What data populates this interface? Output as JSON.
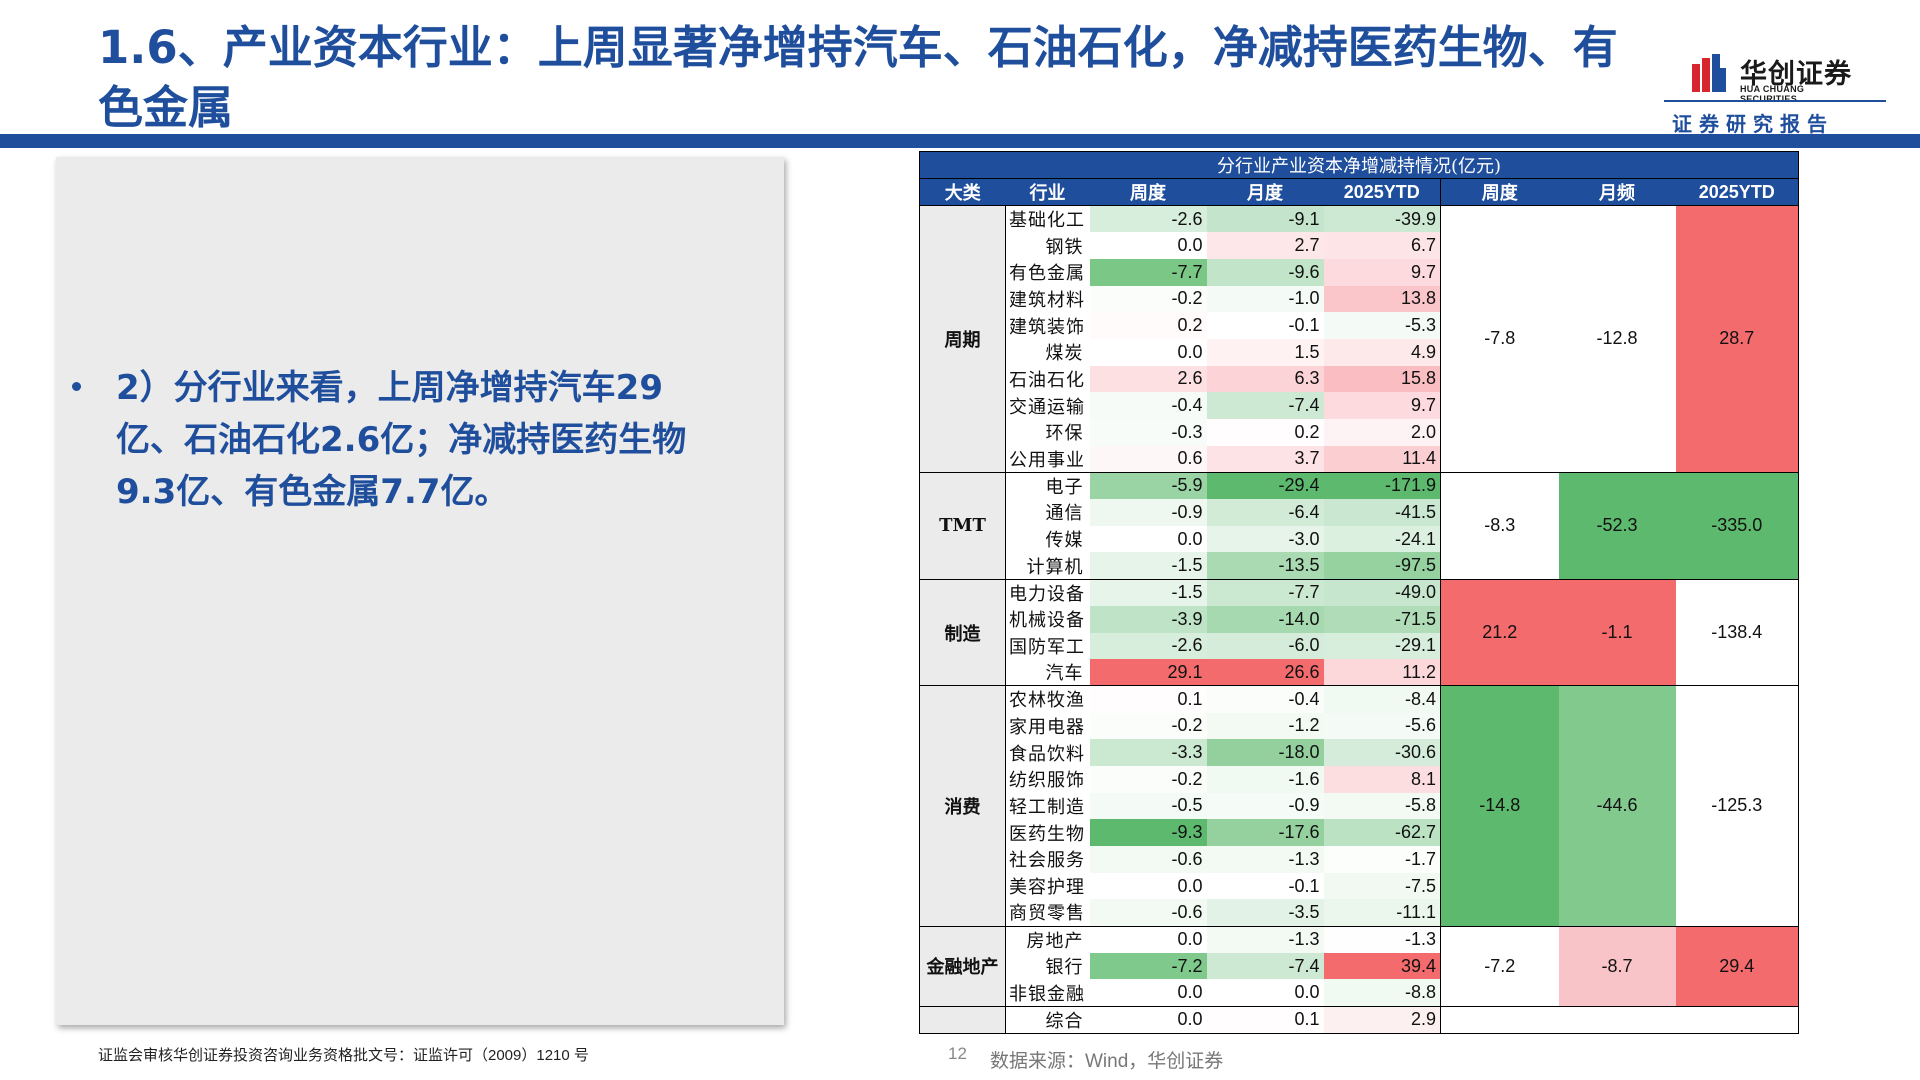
{
  "slide": {
    "title": "1.6、产业资本行业：上周显著净增持汽车、石油石化，净减持医药生物、有色金属",
    "logo_cn": "华创证券",
    "logo_en": "HUA CHUANG SECURITIES",
    "report_label": "证券研究报告",
    "bullet": "2）分行业来看，上周净增持汽车29亿、石油石化2.6亿；净减持医药生物9.3亿、有色金属7.7亿。",
    "footer_license": "证监会审核华创证券投资咨询业务资格批文号：证监许可（2009）1210 号",
    "page_number": "12",
    "source": "数据来源：Wind，华创证券",
    "colors": {
      "brand_blue": "#1f4e9c",
      "red_strong": "#f46b6e",
      "red_light": "#fbd0d3",
      "green_strong": "#5cb96e",
      "green_light": "#cde9d3"
    }
  },
  "table": {
    "caption": "分行业产业资本净增减持情况(亿元)",
    "headers": [
      "大类",
      "行业",
      "周度",
      "月度",
      "2025YTD",
      "周度",
      "月频",
      "2025YTD"
    ],
    "groups": [
      {
        "name": "周期",
        "agg": [
          "-7.8",
          "-12.8",
          "28.7"
        ],
        "agg_colors": [
          "#ffffff",
          "#ffffff",
          "#f46b6e"
        ],
        "rows": [
          {
            "name": "基础化工",
            "v": [
              "-2.6",
              "-9.1",
              "-39.9"
            ],
            "c": [
              "#d7eedc",
              "#c4e5cb",
              "#cde9d3"
            ]
          },
          {
            "name": "钢铁",
            "v": [
              "0.0",
              "2.7",
              "6.7"
            ],
            "c": [
              "#ffffff",
              "#fde7e9",
              "#fde4e6"
            ]
          },
          {
            "name": "有色金属",
            "v": [
              "-7.7",
              "-9.6",
              "9.7"
            ],
            "c": [
              "#7ac786",
              "#c2e4c9",
              "#fcdadd"
            ]
          },
          {
            "name": "建筑材料",
            "v": [
              "-0.2",
              "-1.0",
              "13.8"
            ],
            "c": [
              "#fbfdfb",
              "#f4faf5",
              "#fbc6ca"
            ]
          },
          {
            "name": "建筑装饰",
            "v": [
              "0.2",
              "-0.1",
              "-5.3"
            ],
            "c": [
              "#fffbfb",
              "#fefffe",
              "#f4faf5"
            ]
          },
          {
            "name": "煤炭",
            "v": [
              "0.0",
              "1.5",
              "4.9"
            ],
            "c": [
              "#ffffff",
              "#fef2f3",
              "#fde8ea"
            ]
          },
          {
            "name": "石油石化",
            "v": [
              "2.6",
              "6.3",
              "15.8"
            ],
            "c": [
              "#fce0e2",
              "#fcd4d7",
              "#fabdc1"
            ]
          },
          {
            "name": "交通运输",
            "v": [
              "-0.4",
              "-7.4",
              "9.7"
            ],
            "c": [
              "#f6fbf7",
              "#cde9d3",
              "#fcdadd"
            ]
          },
          {
            "name": "环保",
            "v": [
              "-0.3",
              "0.2",
              "2.0"
            ],
            "c": [
              "#f8fcf9",
              "#fffdfd",
              "#fef3f4"
            ]
          },
          {
            "name": "公用事业",
            "v": [
              "0.6",
              "3.7",
              "11.4"
            ],
            "c": [
              "#fef7f8",
              "#fde3e5",
              "#fbcfd2"
            ]
          }
        ]
      },
      {
        "name": "TMT",
        "agg": [
          "-8.3",
          "-52.3",
          "-335.0"
        ],
        "agg_colors": [
          "#ffffff",
          "#5cb96e",
          "#5cb96e"
        ],
        "rows": [
          {
            "name": "电子",
            "v": [
              "-5.9",
              "-29.4",
              "-171.9"
            ],
            "c": [
              "#9ad4a4",
              "#5cb96e",
              "#5cb96e"
            ]
          },
          {
            "name": "通信",
            "v": [
              "-0.9",
              "-6.4",
              "-41.5"
            ],
            "c": [
              "#eef7f0",
              "#d2ebd7",
              "#cae7d1"
            ]
          },
          {
            "name": "传媒",
            "v": [
              "0.0",
              "-3.0",
              "-24.1"
            ],
            "c": [
              "#ffffff",
              "#e6f4e9",
              "#dcf0e0"
            ]
          },
          {
            "name": "计算机",
            "v": [
              "-1.5",
              "-13.5",
              "-97.5"
            ],
            "c": [
              "#e6f4e9",
              "#a9dab1",
              "#96d1a0"
            ]
          }
        ]
      },
      {
        "name": "制造",
        "agg": [
          "21.2",
          "-1.1",
          "-138.4"
        ],
        "agg_colors": [
          "#f46b6e",
          "#f46b6e",
          "#ffffff"
        ],
        "rows": [
          {
            "name": "电力设备",
            "v": [
              "-1.5",
              "-7.7",
              "-49.0"
            ],
            "c": [
              "#e6f4e9",
              "#cbe8d1",
              "#c6e6cd"
            ]
          },
          {
            "name": "机械设备",
            "v": [
              "-3.9",
              "-14.0",
              "-71.5"
            ],
            "c": [
              "#bfe3c6",
              "#a6d9af",
              "#b0ddb8"
            ]
          },
          {
            "name": "国防军工",
            "v": [
              "-2.6",
              "-6.0",
              "-29.1"
            ],
            "c": [
              "#d7eedc",
              "#d4ecd9",
              "#d6eedb"
            ]
          },
          {
            "name": "汽车",
            "v": [
              "29.1",
              "26.6",
              "11.2"
            ],
            "c": [
              "#f46b6e",
              "#f46b6e",
              "#fcd8db"
            ]
          }
        ]
      },
      {
        "name": "消费",
        "agg": [
          "-14.8",
          "-44.6",
          "-125.3"
        ],
        "agg_colors": [
          "#5cb96e",
          "#82c98e",
          "#ffffff"
        ],
        "rows": [
          {
            "name": "农林牧渔",
            "v": [
              "0.1",
              "-0.4",
              "-8.4"
            ],
            "c": [
              "#fffdfd",
              "#fbfdfb",
              "#f1f9f3"
            ]
          },
          {
            "name": "家用电器",
            "v": [
              "-0.2",
              "-1.2",
              "-5.6"
            ],
            "c": [
              "#fbfdfb",
              "#f3faf4",
              "#f4faf5"
            ]
          },
          {
            "name": "食品饮料",
            "v": [
              "-3.3",
              "-18.0",
              "-30.6"
            ],
            "c": [
              "#cbe8d1",
              "#93d09d",
              "#d4ecd9"
            ]
          },
          {
            "name": "纺织服饰",
            "v": [
              "-0.2",
              "-1.6",
              "8.1"
            ],
            "c": [
              "#fbfdfb",
              "#f1f9f3",
              "#fcdee0"
            ]
          },
          {
            "name": "轻工制造",
            "v": [
              "-0.5",
              "-0.9",
              "-5.8"
            ],
            "c": [
              "#f4faf5",
              "#f5fbf6",
              "#f3faf4"
            ]
          },
          {
            "name": "医药生物",
            "v": [
              "-9.3",
              "-17.6",
              "-62.7"
            ],
            "c": [
              "#5cb96e",
              "#95d19f",
              "#bbe2c3"
            ]
          },
          {
            "name": "社会服务",
            "v": [
              "-0.6",
              "-1.3",
              "-1.7"
            ],
            "c": [
              "#f3faf4",
              "#f3faf4",
              "#fcfefc"
            ]
          },
          {
            "name": "美容护理",
            "v": [
              "0.0",
              "-0.1",
              "-7.5"
            ],
            "c": [
              "#ffffff",
              "#fefffe",
              "#f2f9f3"
            ]
          },
          {
            "name": "商贸零售",
            "v": [
              "-0.6",
              "-3.5",
              "-11.1"
            ],
            "c": [
              "#f3faf4",
              "#e3f2e6",
              "#ebf6ed"
            ]
          }
        ]
      },
      {
        "name": "金融地产",
        "agg": [
          "-7.2",
          "-8.7",
          "29.4"
        ],
        "agg_colors": [
          "#ffffff",
          "#f9c4c8",
          "#f46b6e"
        ],
        "rows": [
          {
            "name": "房地产",
            "v": [
              "0.0",
              "-1.3",
              "-1.3"
            ],
            "c": [
              "#ffffff",
              "#f3faf4",
              "#fdfefd"
            ]
          },
          {
            "name": "银行",
            "v": [
              "-7.2",
              "-7.4",
              "39.4"
            ],
            "c": [
              "#80c98c",
              "#cde9d3",
              "#f46b6e"
            ]
          },
          {
            "name": "非银金融",
            "v": [
              "0.0",
              "0.0",
              "-8.8"
            ],
            "c": [
              "#ffffff",
              "#ffffff",
              "#f1f9f3"
            ]
          }
        ]
      },
      {
        "name": "",
        "agg": [
          "",
          "",
          ""
        ],
        "agg_colors": [
          "#ffffff",
          "#ffffff",
          "#ffffff"
        ],
        "rows": [
          {
            "name": "综合",
            "v": [
              "0.0",
              "0.1",
              "2.9"
            ],
            "c": [
              "#ffffff",
              "#fffdfd",
              "#fdf0f1"
            ]
          }
        ]
      }
    ]
  }
}
